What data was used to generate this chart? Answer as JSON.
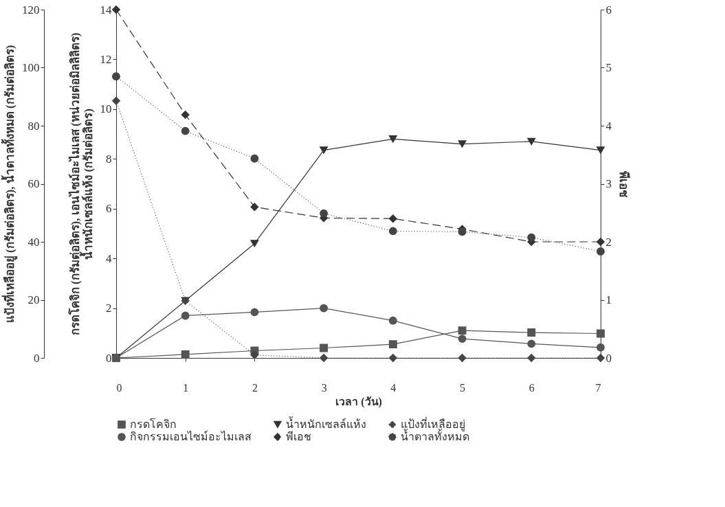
{
  "chart_data": {
    "type": "line",
    "xlabel": "เวลา (วัน)",
    "ylabel": "กรดโคจิก (กรัมต่อลิตร), เอนไซม์อะไมเลส (หน่วยต่อมิลลิลิตร)\nน้ำหนักเซลล์แห้ง (กรัมต่อลิตร)",
    "y2label": "พีเอช",
    "y3label": "แป้งที่เหลืออยู่ (กรัมต่อลิตร), น้ำตาลทั้งหมด (กรัมต่อลิตร)",
    "x": [
      0,
      1,
      2,
      3,
      4,
      5,
      6,
      7
    ],
    "xlim": [
      0,
      7
    ],
    "xticks": [
      0,
      1,
      2,
      3,
      4,
      5,
      6,
      7
    ],
    "ylim": [
      0,
      14
    ],
    "yticks": [
      0,
      2,
      4,
      6,
      8,
      10,
      12,
      14
    ],
    "y2lim": [
      0,
      6
    ],
    "y2ticks": [
      0,
      1,
      2,
      3,
      4,
      5,
      6
    ],
    "y3lim": [
      0,
      120
    ],
    "y3ticks": [
      0,
      20,
      40,
      60,
      80,
      100,
      120
    ],
    "grid": false,
    "legend": "bottom",
    "series": [
      {
        "name": "กรดโคจิก",
        "color": "#555555",
        "axis": "y",
        "marker": "square",
        "line_style": "solid",
        "values": [
          0,
          0.14,
          0.29,
          0.4,
          0.55,
          1.1,
          1.02,
          0.98
        ]
      },
      {
        "name": "น้ำหนักเซลล์แห้ง",
        "color": "#333333",
        "axis": "y",
        "marker": "triangle",
        "line_style": "solid",
        "values": [
          0,
          2.3,
          4.6,
          8.35,
          8.8,
          8.6,
          8.7,
          8.35
        ]
      },
      {
        "name": "แป้งที่เหลืออยู่",
        "color": "#444444",
        "axis": "y3",
        "marker": "diamond",
        "line_style": "dotted",
        "values": [
          88.6,
          19.7,
          1,
          0,
          0,
          0,
          0,
          0
        ]
      },
      {
        "name": "กิจกรรมเอนไซม์อะไมเลส",
        "color": "#555555",
        "axis": "y",
        "marker": "circle",
        "line_style": "solid",
        "values": [
          0,
          1.7,
          1.84,
          2.0,
          1.5,
          0.77,
          0.57,
          0.42
        ]
      },
      {
        "name": "พีเอช",
        "color": "#333333",
        "axis": "y2",
        "marker": "diamond",
        "line_style": "dashed",
        "values": [
          6.0,
          4.19,
          2.6,
          2.41,
          2.4,
          2.22,
          2.0,
          2.0
        ]
      },
      {
        "name": "น้ำตาลทั้งหมด",
        "color": "#444444",
        "axis": "y3",
        "marker": "circle",
        "line_style": "dotted",
        "values": [
          97,
          78.2,
          68.7,
          49.8,
          43.7,
          43.5,
          41.5,
          36.7
        ]
      }
    ]
  }
}
